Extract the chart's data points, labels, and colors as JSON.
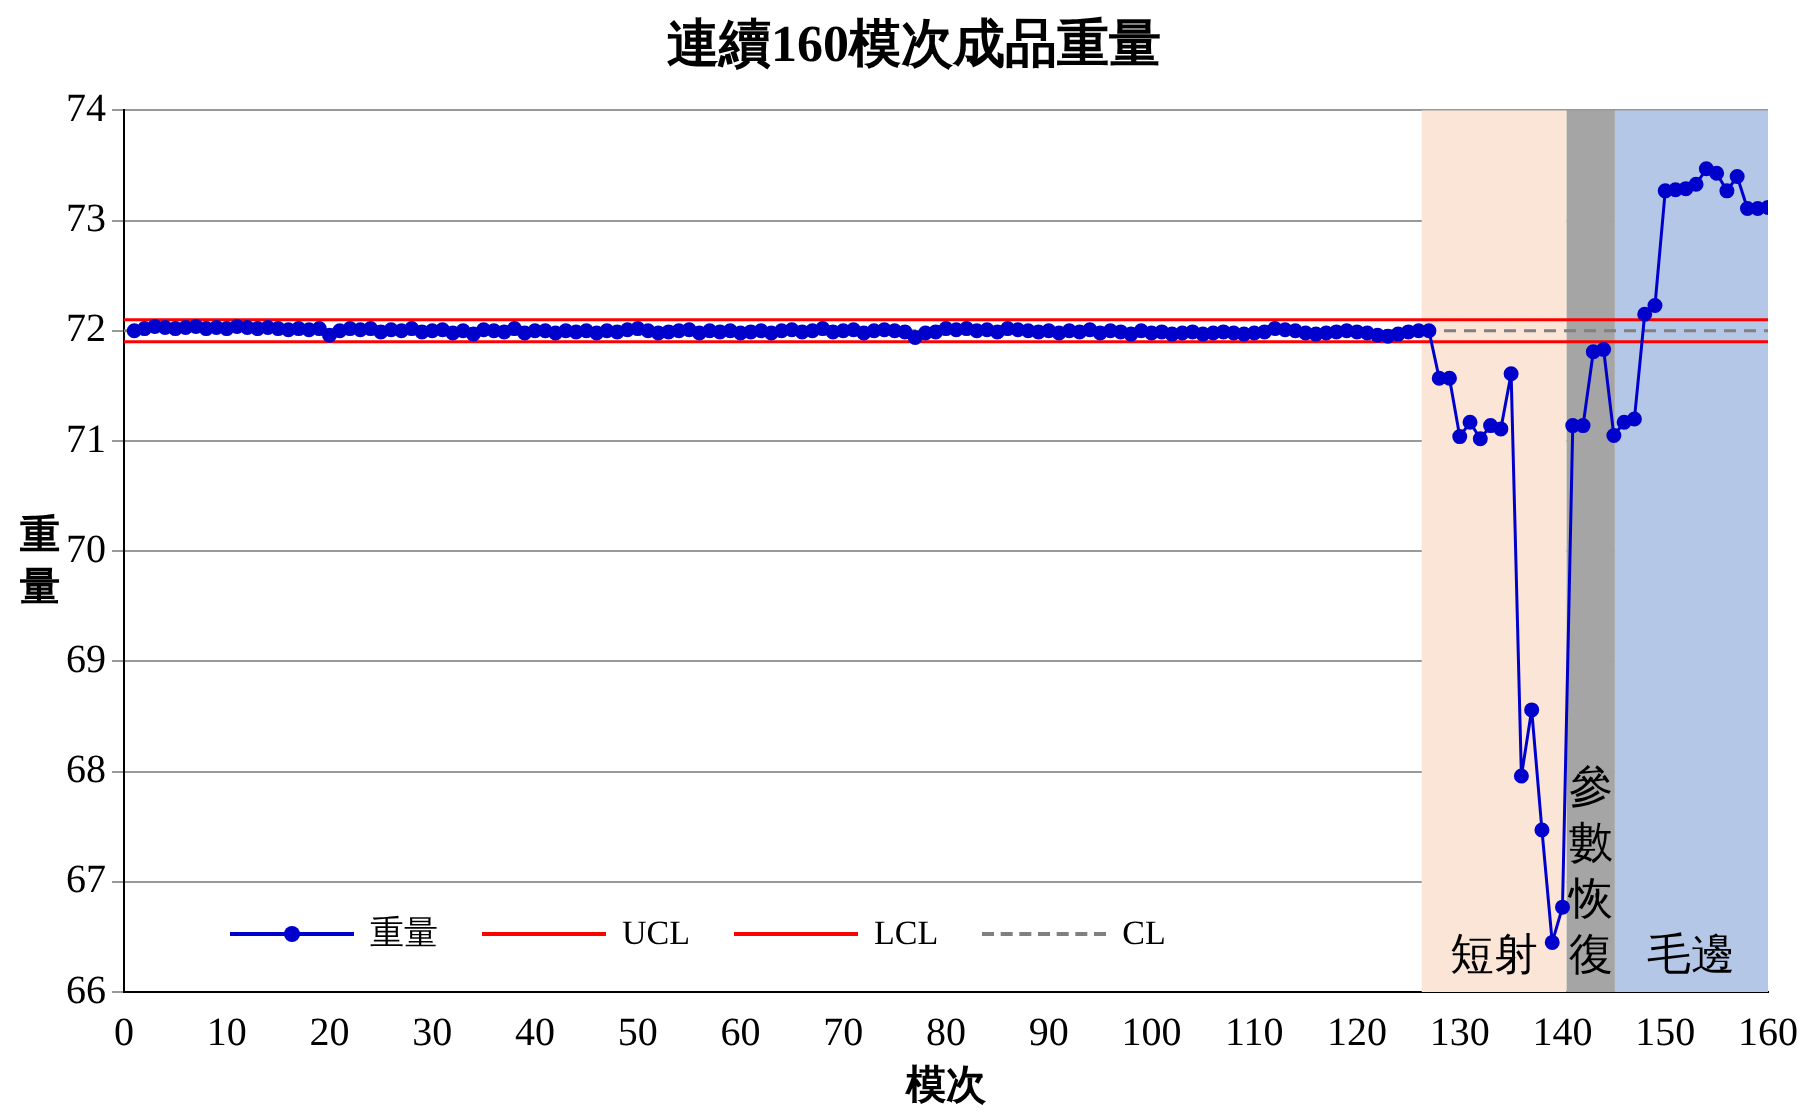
{
  "chart_data": {
    "type": "line",
    "title": "連續160模次成品重量",
    "xlabel": "模次",
    "ylabel": "重量",
    "xlim": [
      0,
      160
    ],
    "xticks": [
      0,
      10,
      20,
      30,
      40,
      50,
      60,
      70,
      80,
      90,
      100,
      110,
      120,
      130,
      140,
      150,
      160
    ],
    "ylim": [
      66,
      74
    ],
    "yticks": [
      66,
      67,
      68,
      69,
      70,
      71,
      72,
      73,
      74
    ],
    "grid": "y",
    "legend": "bottom left",
    "bands": [
      {
        "axis": "x",
        "from": 126.3,
        "to": 140.4,
        "label": "短射",
        "color": "#fbe5d6"
      },
      {
        "axis": "x",
        "from": 140.4,
        "to": 145.1,
        "label": "參數恢復",
        "color": "#a5a5a5"
      },
      {
        "axis": "x",
        "from": 145.1,
        "to": 160,
        "label": "毛邊",
        "color": "#b4c7e7"
      }
    ],
    "series": [
      {
        "name": "重量",
        "color": "#0000cc",
        "marker": "circle",
        "line_style": "solid",
        "x": [
          1,
          2,
          3,
          4,
          5,
          6,
          7,
          8,
          9,
          10,
          11,
          12,
          13,
          14,
          15,
          16,
          17,
          18,
          19,
          20,
          21,
          22,
          23,
          24,
          25,
          26,
          27,
          28,
          29,
          30,
          31,
          32,
          33,
          34,
          35,
          36,
          37,
          38,
          39,
          40,
          41,
          42,
          43,
          44,
          45,
          46,
          47,
          48,
          49,
          50,
          51,
          52,
          53,
          54,
          55,
          56,
          57,
          58,
          59,
          60,
          61,
          62,
          63,
          64,
          65,
          66,
          67,
          68,
          69,
          70,
          71,
          72,
          73,
          74,
          75,
          76,
          77,
          78,
          79,
          80,
          81,
          82,
          83,
          84,
          85,
          86,
          87,
          88,
          89,
          90,
          91,
          92,
          93,
          94,
          95,
          96,
          97,
          98,
          99,
          100,
          101,
          102,
          103,
          104,
          105,
          106,
          107,
          108,
          109,
          110,
          111,
          112,
          113,
          114,
          115,
          116,
          117,
          118,
          119,
          120,
          121,
          122,
          123,
          124,
          125,
          126,
          127,
          128,
          129,
          130,
          131,
          132,
          133,
          134,
          135,
          136,
          137,
          138,
          139,
          140,
          141,
          142,
          143,
          144,
          145,
          146,
          147,
          148,
          149,
          150,
          151,
          152,
          153,
          154,
          155,
          156,
          157,
          158,
          159,
          160
        ],
        "values": [
          72.0,
          72.02,
          72.04,
          72.03,
          72.02,
          72.03,
          72.04,
          72.02,
          72.03,
          72.02,
          72.04,
          72.03,
          72.02,
          72.03,
          72.02,
          72.01,
          72.02,
          72.01,
          72.02,
          71.96,
          72.0,
          72.02,
          72.01,
          72.02,
          71.99,
          72.01,
          72.0,
          72.02,
          71.99,
          72.0,
          72.01,
          71.98,
          72.0,
          71.97,
          72.01,
          72.0,
          71.99,
          72.02,
          71.98,
          72.0,
          72.0,
          71.98,
          72.0,
          71.99,
          72.0,
          71.98,
          72.0,
          71.99,
          72.01,
          72.02,
          72.0,
          71.98,
          71.99,
          72.0,
          72.01,
          71.98,
          72.0,
          71.99,
          72.0,
          71.98,
          71.99,
          72.0,
          71.98,
          72.0,
          72.01,
          71.99,
          72.0,
          72.02,
          71.99,
          72.0,
          72.01,
          71.98,
          72.0,
          72.01,
          72.0,
          71.99,
          71.94,
          71.98,
          71.99,
          72.02,
          72.01,
          72.02,
          72.0,
          72.01,
          71.99,
          72.02,
          72.01,
          72.0,
          71.99,
          72.0,
          71.98,
          72.0,
          71.99,
          72.01,
          71.98,
          72.0,
          71.99,
          71.97,
          72.0,
          71.98,
          71.99,
          71.97,
          71.98,
          71.99,
          71.97,
          71.98,
          71.99,
          71.98,
          71.97,
          71.98,
          71.99,
          72.02,
          72.01,
          72.0,
          71.98,
          71.97,
          71.98,
          71.99,
          72.0,
          71.99,
          71.98,
          71.96,
          71.95,
          71.97,
          71.99,
          72.0,
          72.0,
          71.57,
          71.57,
          71.04,
          71.17,
          71.02,
          71.14,
          71.11,
          71.61,
          67.96,
          68.56,
          67.47,
          66.45,
          66.77,
          71.14,
          71.14,
          71.81,
          71.83,
          71.05,
          71.17,
          71.2,
          72.15,
          72.23,
          73.27,
          73.28,
          73.29,
          73.33,
          73.47,
          73.43,
          73.27,
          73.4,
          73.11,
          73.11,
          73.12
        ]
      },
      {
        "name": "UCL",
        "color": "#ff0000",
        "marker": "none",
        "line_style": "solid",
        "x": [
          0,
          160
        ],
        "values": [
          72.1,
          72.1
        ]
      },
      {
        "name": "LCL",
        "color": "#ff0000",
        "marker": "none",
        "line_style": "solid",
        "x": [
          0,
          160
        ],
        "values": [
          71.9,
          71.9
        ]
      },
      {
        "name": "CL",
        "color": "#808080",
        "marker": "none",
        "line_style": "dashed",
        "x": [
          0,
          160
        ],
        "values": [
          72.0,
          72.0
        ]
      }
    ]
  }
}
